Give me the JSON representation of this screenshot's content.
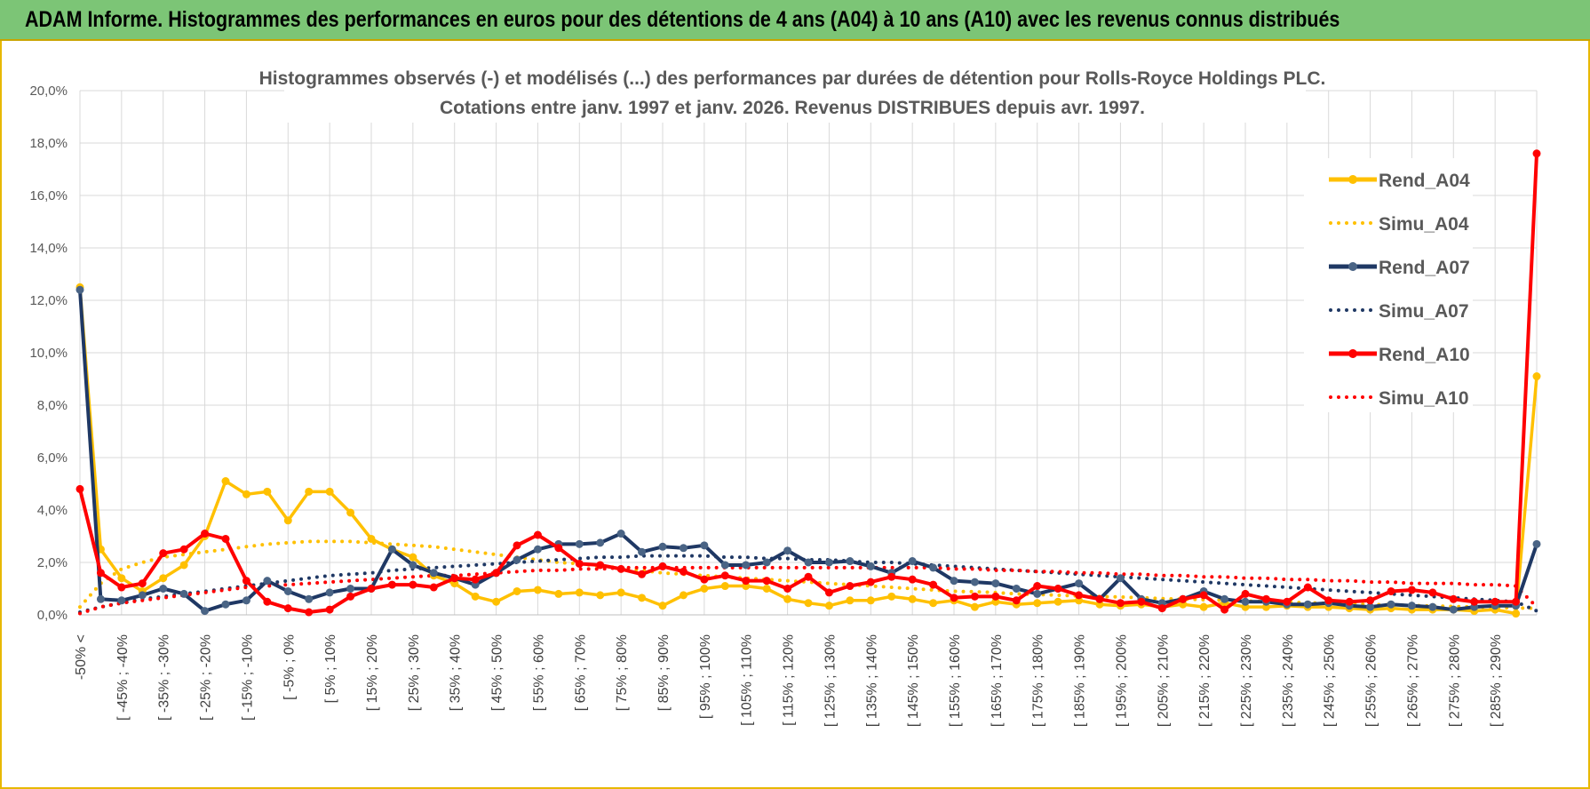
{
  "header": {
    "title": "ADAM Informe. Histogrammes des performances en euros pour des détentions de 4 ans (A04) à 10 ans (A10) avec les revenus connus distribués"
  },
  "chart_data": {
    "type": "line",
    "title": [
      "Histogrammes observés (-) et modélisés (...) des performances par durées de détention pour Rolls-Royce Holdings PLC.",
      "Cotations entre janv. 1997 et janv. 2026. Revenus DISTRIBUES depuis avr. 1997."
    ],
    "y_tick_labels": [
      "0,0%",
      "2,0%",
      "4,0%",
      "6,0%",
      "8,0%",
      "10,0%",
      "12,0%",
      "14,0%",
      "16,0%",
      "18,0%",
      "20,0%"
    ],
    "ylim": [
      0,
      20
    ],
    "grid": true,
    "legend_position": "right",
    "x_tick_labels": [
      "-50% <",
      "[ -45% ; -40%",
      "[ -35% ; -30%",
      "[ -25% ; -20%",
      "[ -15% ; -10%",
      "[ -5% ; 0%",
      "[ 5% ; 10%",
      "[ 15% ; 20%",
      "[ 25% ; 30%",
      "[ 35% ; 40%",
      "[ 45% ; 50%",
      "[ 55% ; 60%",
      "[ 65% ; 70%",
      "[ 75% ; 80%",
      "[ 85% ; 90%",
      "[ 95% ; 100%",
      "[ 105% ; 110%",
      "[ 115% ; 120%",
      "[ 125% ; 130%",
      "[ 135% ; 140%",
      "[ 145% ; 150%",
      "[ 155% ; 160%",
      "[ 165% ; 170%",
      "[ 175% ; 180%",
      "[ 185% ; 190%",
      "[ 195% ; 200%",
      "[ 205% ; 210%",
      "[ 215% ; 220%",
      "[ 225% ; 230%",
      "[ 235% ; 240%",
      "[ 245% ; 250%",
      "[ 255% ; 260%",
      "[ 265% ; 270%",
      "[ 275% ; 280%",
      "[ 285% ; 290%"
    ],
    "n_categories": 71,
    "series": [
      {
        "name": "Rend_A04",
        "style": "solid",
        "color": "#ffc000",
        "values": [
          12.5,
          2.5,
          1.4,
          0.9,
          1.4,
          1.9,
          3.0,
          5.1,
          4.6,
          4.7,
          3.6,
          4.7,
          4.7,
          3.9,
          2.9,
          2.5,
          2.2,
          1.5,
          1.2,
          0.7,
          0.5,
          0.9,
          0.95,
          0.8,
          0.85,
          0.75,
          0.85,
          0.65,
          0.35,
          0.75,
          1.0,
          1.1,
          1.1,
          1.0,
          0.6,
          0.45,
          0.35,
          0.55,
          0.55,
          0.7,
          0.6,
          0.45,
          0.55,
          0.3,
          0.5,
          0.4,
          0.45,
          0.5,
          0.55,
          0.4,
          0.35,
          0.4,
          0.3,
          0.4,
          0.3,
          0.45,
          0.3,
          0.3,
          0.35,
          0.3,
          0.3,
          0.25,
          0.2,
          0.25,
          0.2,
          0.2,
          0.2,
          0.15,
          0.2,
          0.05,
          9.1
        ]
      },
      {
        "name": "Simu_A04",
        "style": "dotted",
        "color": "#ffc000",
        "values": [
          0.3,
          1.2,
          1.75,
          2.0,
          2.2,
          2.3,
          2.4,
          2.5,
          2.6,
          2.7,
          2.75,
          2.8,
          2.8,
          2.8,
          2.75,
          2.7,
          2.65,
          2.6,
          2.5,
          2.4,
          2.3,
          2.2,
          2.1,
          2.0,
          1.95,
          1.85,
          1.8,
          1.7,
          1.6,
          1.55,
          1.5,
          1.45,
          1.4,
          1.35,
          1.3,
          1.25,
          1.2,
          1.15,
          1.1,
          1.05,
          1.0,
          0.95,
          0.9,
          0.88,
          0.85,
          0.8,
          0.78,
          0.75,
          0.72,
          0.7,
          0.68,
          0.65,
          0.62,
          0.6,
          0.58,
          0.55,
          0.53,
          0.5,
          0.48,
          0.46,
          0.44,
          0.42,
          0.4,
          0.38,
          0.36,
          0.34,
          0.32,
          0.3,
          0.28,
          0.26,
          0.25
        ]
      },
      {
        "name": "Rend_A07",
        "style": "solid",
        "color": "#1f3864",
        "values": [
          12.4,
          0.6,
          0.55,
          0.75,
          1.0,
          0.8,
          0.15,
          0.4,
          0.55,
          1.3,
          0.9,
          0.6,
          0.85,
          1.0,
          1.0,
          2.5,
          1.9,
          1.6,
          1.4,
          1.15,
          1.6,
          2.1,
          2.5,
          2.7,
          2.7,
          2.75,
          3.1,
          2.4,
          2.6,
          2.55,
          2.65,
          1.9,
          1.9,
          2.0,
          2.45,
          2.0,
          2.0,
          2.05,
          1.85,
          1.6,
          2.05,
          1.8,
          1.3,
          1.25,
          1.2,
          1.0,
          0.8,
          1.0,
          1.2,
          0.6,
          1.4,
          0.6,
          0.45,
          0.6,
          0.9,
          0.6,
          0.5,
          0.5,
          0.4,
          0.4,
          0.45,
          0.35,
          0.3,
          0.4,
          0.35,
          0.3,
          0.2,
          0.3,
          0.35,
          0.35,
          2.7
        ]
      },
      {
        "name": "Simu_A07",
        "style": "dotted",
        "color": "#1f3864",
        "values": [
          0.1,
          0.3,
          0.45,
          0.6,
          0.7,
          0.8,
          0.9,
          1.0,
          1.1,
          1.2,
          1.3,
          1.4,
          1.5,
          1.55,
          1.6,
          1.7,
          1.75,
          1.8,
          1.85,
          1.9,
          1.95,
          2.0,
          2.05,
          2.1,
          2.15,
          2.2,
          2.2,
          2.25,
          2.25,
          2.25,
          2.25,
          2.2,
          2.2,
          2.15,
          2.15,
          2.1,
          2.1,
          2.05,
          2.0,
          2.0,
          1.95,
          1.9,
          1.85,
          1.8,
          1.75,
          1.7,
          1.65,
          1.6,
          1.55,
          1.5,
          1.45,
          1.4,
          1.35,
          1.3,
          1.25,
          1.2,
          1.15,
          1.1,
          1.05,
          1.0,
          0.95,
          0.9,
          0.85,
          0.8,
          0.75,
          0.7,
          0.65,
          0.6,
          0.55,
          0.5,
          0.15
        ]
      },
      {
        "name": "Rend_A10",
        "style": "solid",
        "color": "#ff0000",
        "values": [
          4.8,
          1.6,
          1.05,
          1.2,
          2.35,
          2.5,
          3.1,
          2.9,
          1.3,
          0.5,
          0.25,
          0.1,
          0.2,
          0.7,
          1.0,
          1.15,
          1.15,
          1.05,
          1.4,
          1.35,
          1.6,
          2.65,
          3.05,
          2.55,
          1.95,
          1.9,
          1.75,
          1.55,
          1.85,
          1.65,
          1.35,
          1.5,
          1.3,
          1.3,
          1.0,
          1.45,
          0.85,
          1.1,
          1.25,
          1.45,
          1.35,
          1.15,
          0.65,
          0.7,
          0.7,
          0.55,
          1.1,
          1.0,
          0.75,
          0.6,
          0.45,
          0.5,
          0.25,
          0.6,
          0.75,
          0.2,
          0.8,
          0.6,
          0.5,
          1.05,
          0.55,
          0.5,
          0.55,
          0.9,
          0.95,
          0.85,
          0.6,
          0.5,
          0.5,
          0.5,
          17.6
        ]
      },
      {
        "name": "Simu_A10",
        "style": "dotted",
        "color": "#ff0000",
        "values": [
          0.05,
          0.3,
          0.45,
          0.55,
          0.65,
          0.75,
          0.85,
          0.95,
          1.05,
          1.1,
          1.15,
          1.2,
          1.25,
          1.3,
          1.35,
          1.4,
          1.45,
          1.5,
          1.5,
          1.55,
          1.6,
          1.65,
          1.7,
          1.7,
          1.75,
          1.75,
          1.8,
          1.8,
          1.8,
          1.8,
          1.8,
          1.8,
          1.8,
          1.8,
          1.8,
          1.8,
          1.8,
          1.8,
          1.8,
          1.8,
          1.8,
          1.8,
          1.75,
          1.75,
          1.7,
          1.7,
          1.65,
          1.65,
          1.6,
          1.6,
          1.55,
          1.55,
          1.5,
          1.5,
          1.45,
          1.45,
          1.4,
          1.4,
          1.35,
          1.35,
          1.3,
          1.3,
          1.25,
          1.25,
          1.2,
          1.2,
          1.2,
          1.15,
          1.15,
          1.1,
          0.3
        ]
      }
    ]
  }
}
